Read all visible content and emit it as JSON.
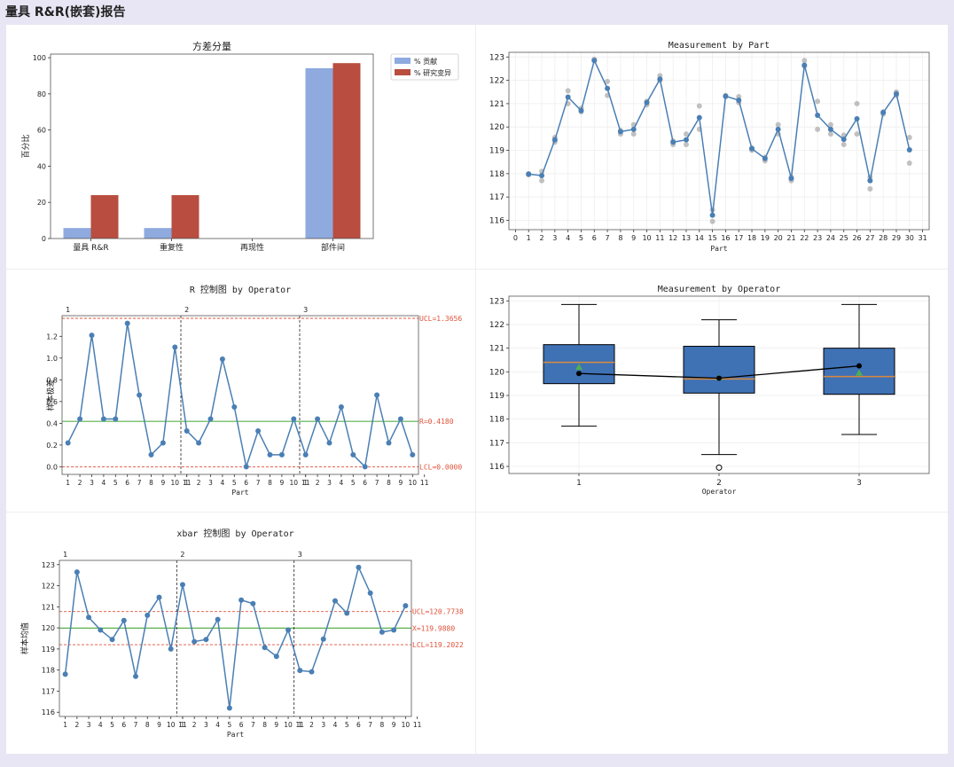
{
  "page": {
    "title": "量具 R&R(嵌套)报告"
  },
  "colors": {
    "blue": "#4a7fb4",
    "bar_contrib": "#8eaadf",
    "bar_study": "#b84d40",
    "ucl": "#e0523a",
    "center": "#5ab04b",
    "grid": "#eeeeee",
    "box_fill": "#3f71b5",
    "median": "#d98a3c",
    "mean_marker": "#4caf50"
  },
  "chart_data": [
    {
      "id": "variance",
      "type": "bar",
      "title": "方差分量",
      "xlabel": "",
      "ylabel": "百分比",
      "categories": [
        "量具 R&R",
        "重复性",
        "再现性",
        "部件间"
      ],
      "series": [
        {
          "name": "% 贡献",
          "values": [
            5.8,
            5.8,
            0,
            94.2
          ]
        },
        {
          "name": "% 研究变异",
          "values": [
            24,
            24,
            0,
            97
          ]
        }
      ],
      "ylim": [
        0,
        102
      ],
      "yticks": [
        0,
        20,
        40,
        60,
        80,
        100
      ],
      "legend": "top-right"
    },
    {
      "id": "meas_part",
      "type": "line",
      "title": "Measurement by Part",
      "xlabel": "Part",
      "ylabel": "",
      "x": [
        1,
        2,
        3,
        4,
        5,
        6,
        7,
        8,
        9,
        10,
        11,
        12,
        13,
        14,
        15,
        16,
        17,
        18,
        19,
        20,
        21,
        22,
        23,
        24,
        25,
        26,
        27,
        28,
        29,
        30
      ],
      "means": [
        117.98,
        117.92,
        119.45,
        121.28,
        120.7,
        122.85,
        121.65,
        119.8,
        119.9,
        121.05,
        122.05,
        119.35,
        119.45,
        120.4,
        116.22,
        121.32,
        121.15,
        119.07,
        118.65,
        119.9,
        117.8,
        122.65,
        120.5,
        119.9,
        119.47,
        120.35,
        117.7,
        120.62,
        121.42,
        119.02
      ],
      "individual": [
        [
          117.95,
          118.0
        ],
        [
          117.7,
          118.1
        ],
        [
          119.35,
          119.55
        ],
        [
          121.0,
          121.55
        ],
        [
          120.65,
          120.8
        ],
        [
          122.85,
          122.9
        ],
        [
          121.35,
          121.95
        ],
        [
          119.7,
          119.85
        ],
        [
          119.7,
          120.1
        ],
        [
          120.95,
          121.1
        ],
        [
          122.0,
          122.2
        ],
        [
          119.25,
          119.4
        ],
        [
          119.25,
          119.7
        ],
        [
          119.9,
          120.9
        ],
        [
          115.95,
          116.45
        ],
        [
          121.3,
          121.35
        ],
        [
          121.05,
          121.3
        ],
        [
          119.0,
          119.1
        ],
        [
          118.55,
          118.7
        ],
        [
          119.7,
          120.1
        ],
        [
          117.7,
          117.85
        ],
        [
          122.6,
          122.85
        ],
        [
          119.9,
          121.1
        ],
        [
          119.7,
          120.1
        ],
        [
          119.25,
          119.65
        ],
        [
          119.7,
          121.0
        ],
        [
          117.35,
          117.85
        ],
        [
          120.55,
          120.65
        ],
        [
          121.35,
          121.5
        ],
        [
          118.45,
          119.55
        ]
      ],
      "xlim": [
        -0.5,
        31.5
      ],
      "ylim": [
        115.6,
        123.2
      ],
      "xticks": [
        0,
        1,
        2,
        3,
        4,
        5,
        6,
        7,
        8,
        9,
        10,
        11,
        12,
        13,
        14,
        15,
        16,
        17,
        18,
        19,
        20,
        21,
        22,
        23,
        24,
        25,
        26,
        27,
        28,
        29,
        30,
        31
      ],
      "yticks": [
        116,
        117,
        118,
        119,
        120,
        121,
        122,
        123
      ],
      "grid": true
    },
    {
      "id": "r_chart",
      "type": "line",
      "title": "R 控制图 by Operator",
      "xlabel": "Part",
      "ylabel": "样本极差",
      "groups": [
        "1",
        "2",
        "3"
      ],
      "values": [
        0.22,
        0.44,
        1.21,
        0.44,
        0.44,
        1.32,
        0.66,
        0.11,
        0.22,
        1.1,
        0.33,
        0.22,
        0.44,
        0.99,
        0.55,
        0.0,
        0.33,
        0.11,
        0.11,
        0.44,
        0.11,
        0.44,
        0.22,
        0.55,
        0.11,
        0.0,
        0.66,
        0.22,
        0.44,
        0.11
      ],
      "xticks": [
        1,
        2,
        3,
        4,
        5,
        6,
        7,
        8,
        9,
        10,
        11
      ],
      "ylim": [
        -0.07,
        1.39
      ],
      "yticks": [
        0.0,
        0.2,
        0.4,
        0.6,
        0.8,
        1.0,
        1.2
      ],
      "ytick_labels": [
        "0.0",
        "0.2",
        "0.4",
        "0.6",
        "0.8",
        "1.0",
        "1.2"
      ],
      "ucl": 1.3656,
      "center": 0.418,
      "lcl": 0.0,
      "ucl_label": "UCL=1.3656",
      "center_label": "R=0.4180",
      "lcl_label": "LCL=0.0000"
    },
    {
      "id": "meas_op",
      "type": "box",
      "title": "Measurement by Operator",
      "xlabel": "Operator",
      "ylabel": "",
      "categories": [
        "1",
        "2",
        "3"
      ],
      "boxes": [
        {
          "min": 117.7,
          "q1": 119.5,
          "median": 120.4,
          "q3": 121.15,
          "max": 122.85,
          "mean": 120.2,
          "outliers": []
        },
        {
          "min": 116.5,
          "q1": 119.1,
          "median": 119.7,
          "q3": 121.08,
          "max": 122.2,
          "mean": 119.75,
          "outliers": [
            115.95
          ]
        },
        {
          "min": 117.35,
          "q1": 119.05,
          "median": 119.8,
          "q3": 121.0,
          "max": 122.85,
          "mean": 119.95,
          "outliers": []
        }
      ],
      "means_line": [
        119.93,
        119.73,
        120.25
      ],
      "ylim": [
        115.7,
        123.2
      ],
      "yticks": [
        116,
        117,
        118,
        119,
        120,
        121,
        122,
        123
      ],
      "grid": true
    },
    {
      "id": "xbar_chart",
      "type": "line",
      "title": "xbar 控制图 by Operator",
      "xlabel": "Part",
      "ylabel": "样本均值",
      "groups": [
        "1",
        "2",
        "3"
      ],
      "values": [
        117.8,
        122.65,
        120.5,
        119.9,
        119.45,
        120.35,
        117.7,
        120.6,
        121.45,
        119.0,
        122.05,
        119.35,
        119.45,
        120.4,
        116.2,
        121.32,
        121.15,
        119.07,
        118.65,
        119.9,
        117.98,
        117.92,
        119.47,
        121.28,
        120.7,
        122.87,
        121.65,
        119.8,
        119.9,
        121.05
      ],
      "xticks": [
        1,
        2,
        3,
        4,
        5,
        6,
        7,
        8,
        9,
        10,
        11
      ],
      "ylim": [
        115.8,
        123.2
      ],
      "yticks": [
        116,
        117,
        118,
        119,
        120,
        121,
        122,
        123
      ],
      "ucl": 120.7738,
      "center": 119.988,
      "lcl": 119.2022,
      "ucl_label": "UCL=120.7738",
      "center_label": "X=119.9880",
      "lcl_label": "LCL=119.2022"
    }
  ]
}
